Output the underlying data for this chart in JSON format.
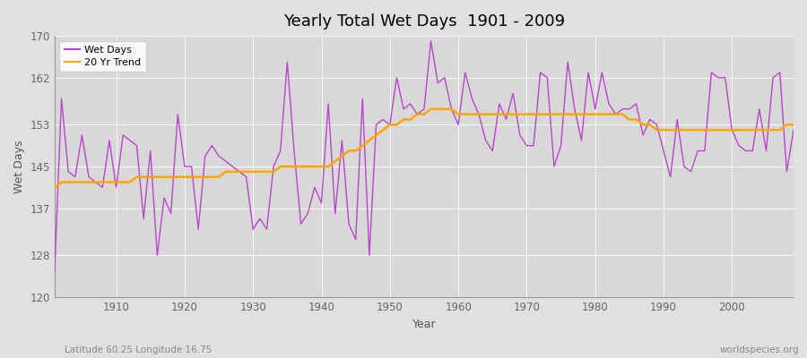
{
  "title": "Yearly Total Wet Days  1901 - 2009",
  "xlabel": "Year",
  "ylabel": "Wet Days",
  "wet_days_color": "#BB44CC",
  "trend_color": "#FFA500",
  "fig_bg_color": "#E0E0E0",
  "plot_bg_color": "#D8D8D8",
  "plot_bottom_bg": "#E8E8E8",
  "ylim": [
    120,
    170
  ],
  "yticks": [
    120,
    128,
    137,
    145,
    153,
    162,
    170
  ],
  "xlim": [
    1901,
    2009
  ],
  "xticks": [
    1910,
    1920,
    1930,
    1940,
    1950,
    1960,
    1970,
    1980,
    1990,
    2000
  ],
  "legend_loc": "upper left",
  "lat_lon_label": "Latitude 60.25 Longitude 16.75",
  "watermark": "worldspecies.org",
  "wet_days": [
    125,
    158,
    144,
    143,
    151,
    143,
    142,
    141,
    150,
    141,
    151,
    150,
    149,
    135,
    148,
    128,
    139,
    136,
    155,
    145,
    145,
    133,
    147,
    149,
    147,
    146,
    145,
    144,
    143,
    133,
    135,
    133,
    145,
    148,
    165,
    148,
    134,
    136,
    141,
    138,
    157,
    136,
    150,
    134,
    131,
    158,
    128,
    153,
    154,
    153,
    162,
    156,
    157,
    155,
    156,
    169,
    161,
    162,
    156,
    153,
    163,
    158,
    155,
    150,
    148,
    157,
    154,
    159,
    151,
    149,
    149,
    163,
    162,
    145,
    149,
    165,
    156,
    150,
    163,
    156,
    163,
    157,
    155,
    156,
    156,
    157,
    151,
    154,
    153,
    148,
    143,
    154,
    145,
    144,
    148,
    148,
    163,
    162,
    162,
    152,
    149,
    148,
    148,
    156,
    148,
    162,
    163,
    144,
    152
  ],
  "trend": [
    141,
    142,
    142,
    142,
    142,
    142,
    142,
    142,
    142,
    142,
    142,
    142,
    143,
    143,
    143,
    143,
    143,
    143,
    143,
    143,
    143,
    143,
    143,
    143,
    143,
    144,
    144,
    144,
    144,
    144,
    144,
    144,
    144,
    145,
    145,
    145,
    145,
    145,
    145,
    145,
    145,
    146,
    147,
    148,
    148,
    149,
    150,
    151,
    152,
    153,
    153,
    154,
    154,
    155,
    155,
    156,
    156,
    156,
    156,
    155,
    155,
    155,
    155,
    155,
    155,
    155,
    155,
    155,
    155,
    155,
    155,
    155,
    155,
    155,
    155,
    155,
    155,
    155,
    155,
    155,
    155,
    155,
    155,
    155,
    154,
    154,
    153,
    153,
    152,
    152,
    152,
    152,
    152,
    152,
    152,
    152,
    152,
    152,
    152,
    152,
    152,
    152,
    152,
    152,
    152,
    152,
    152,
    153,
    153
  ]
}
